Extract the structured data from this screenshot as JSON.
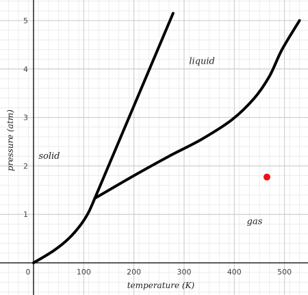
{
  "chart_data": {
    "type": "line",
    "title": "",
    "xlabel": "temperature (K)",
    "ylabel": "pressure (atm)",
    "xlim": [
      -10,
      560
    ],
    "ylim": [
      -0.35,
      5.4
    ],
    "x_ticks": [
      0,
      100,
      200,
      300,
      400,
      500
    ],
    "y_ticks": [
      1,
      2,
      3,
      4,
      5
    ],
    "grid": true,
    "series": [
      {
        "values": [
          [
            0,
            0
          ],
          [
            40,
            0.25
          ],
          [
            70,
            0.5
          ],
          [
            95,
            0.8
          ],
          [
            110,
            1.05
          ],
          [
            122,
            1.33
          ]
        ]
      },
      {
        "values": [
          [
            122,
            1.33
          ],
          [
            278,
            5.15
          ]
        ]
      },
      {
        "values": [
          [
            122,
            1.33
          ],
          [
            200,
            1.8
          ],
          [
            270,
            2.2
          ],
          [
            335,
            2.55
          ],
          [
            395,
            2.95
          ],
          [
            440,
            3.4
          ],
          [
            470,
            3.85
          ],
          [
            495,
            4.4
          ],
          [
            530,
            5.0
          ]
        ]
      }
    ],
    "points": [
      {
        "x": 465,
        "y": 1.77,
        "color": "#ee1111"
      }
    ],
    "region_labels": [
      {
        "text": "solid",
        "x": 10,
        "y": 2.15
      },
      {
        "text": "liquid",
        "x": 310,
        "y": 4.1
      },
      {
        "text": "gas",
        "x": 425,
        "y": 0.8
      }
    ]
  }
}
